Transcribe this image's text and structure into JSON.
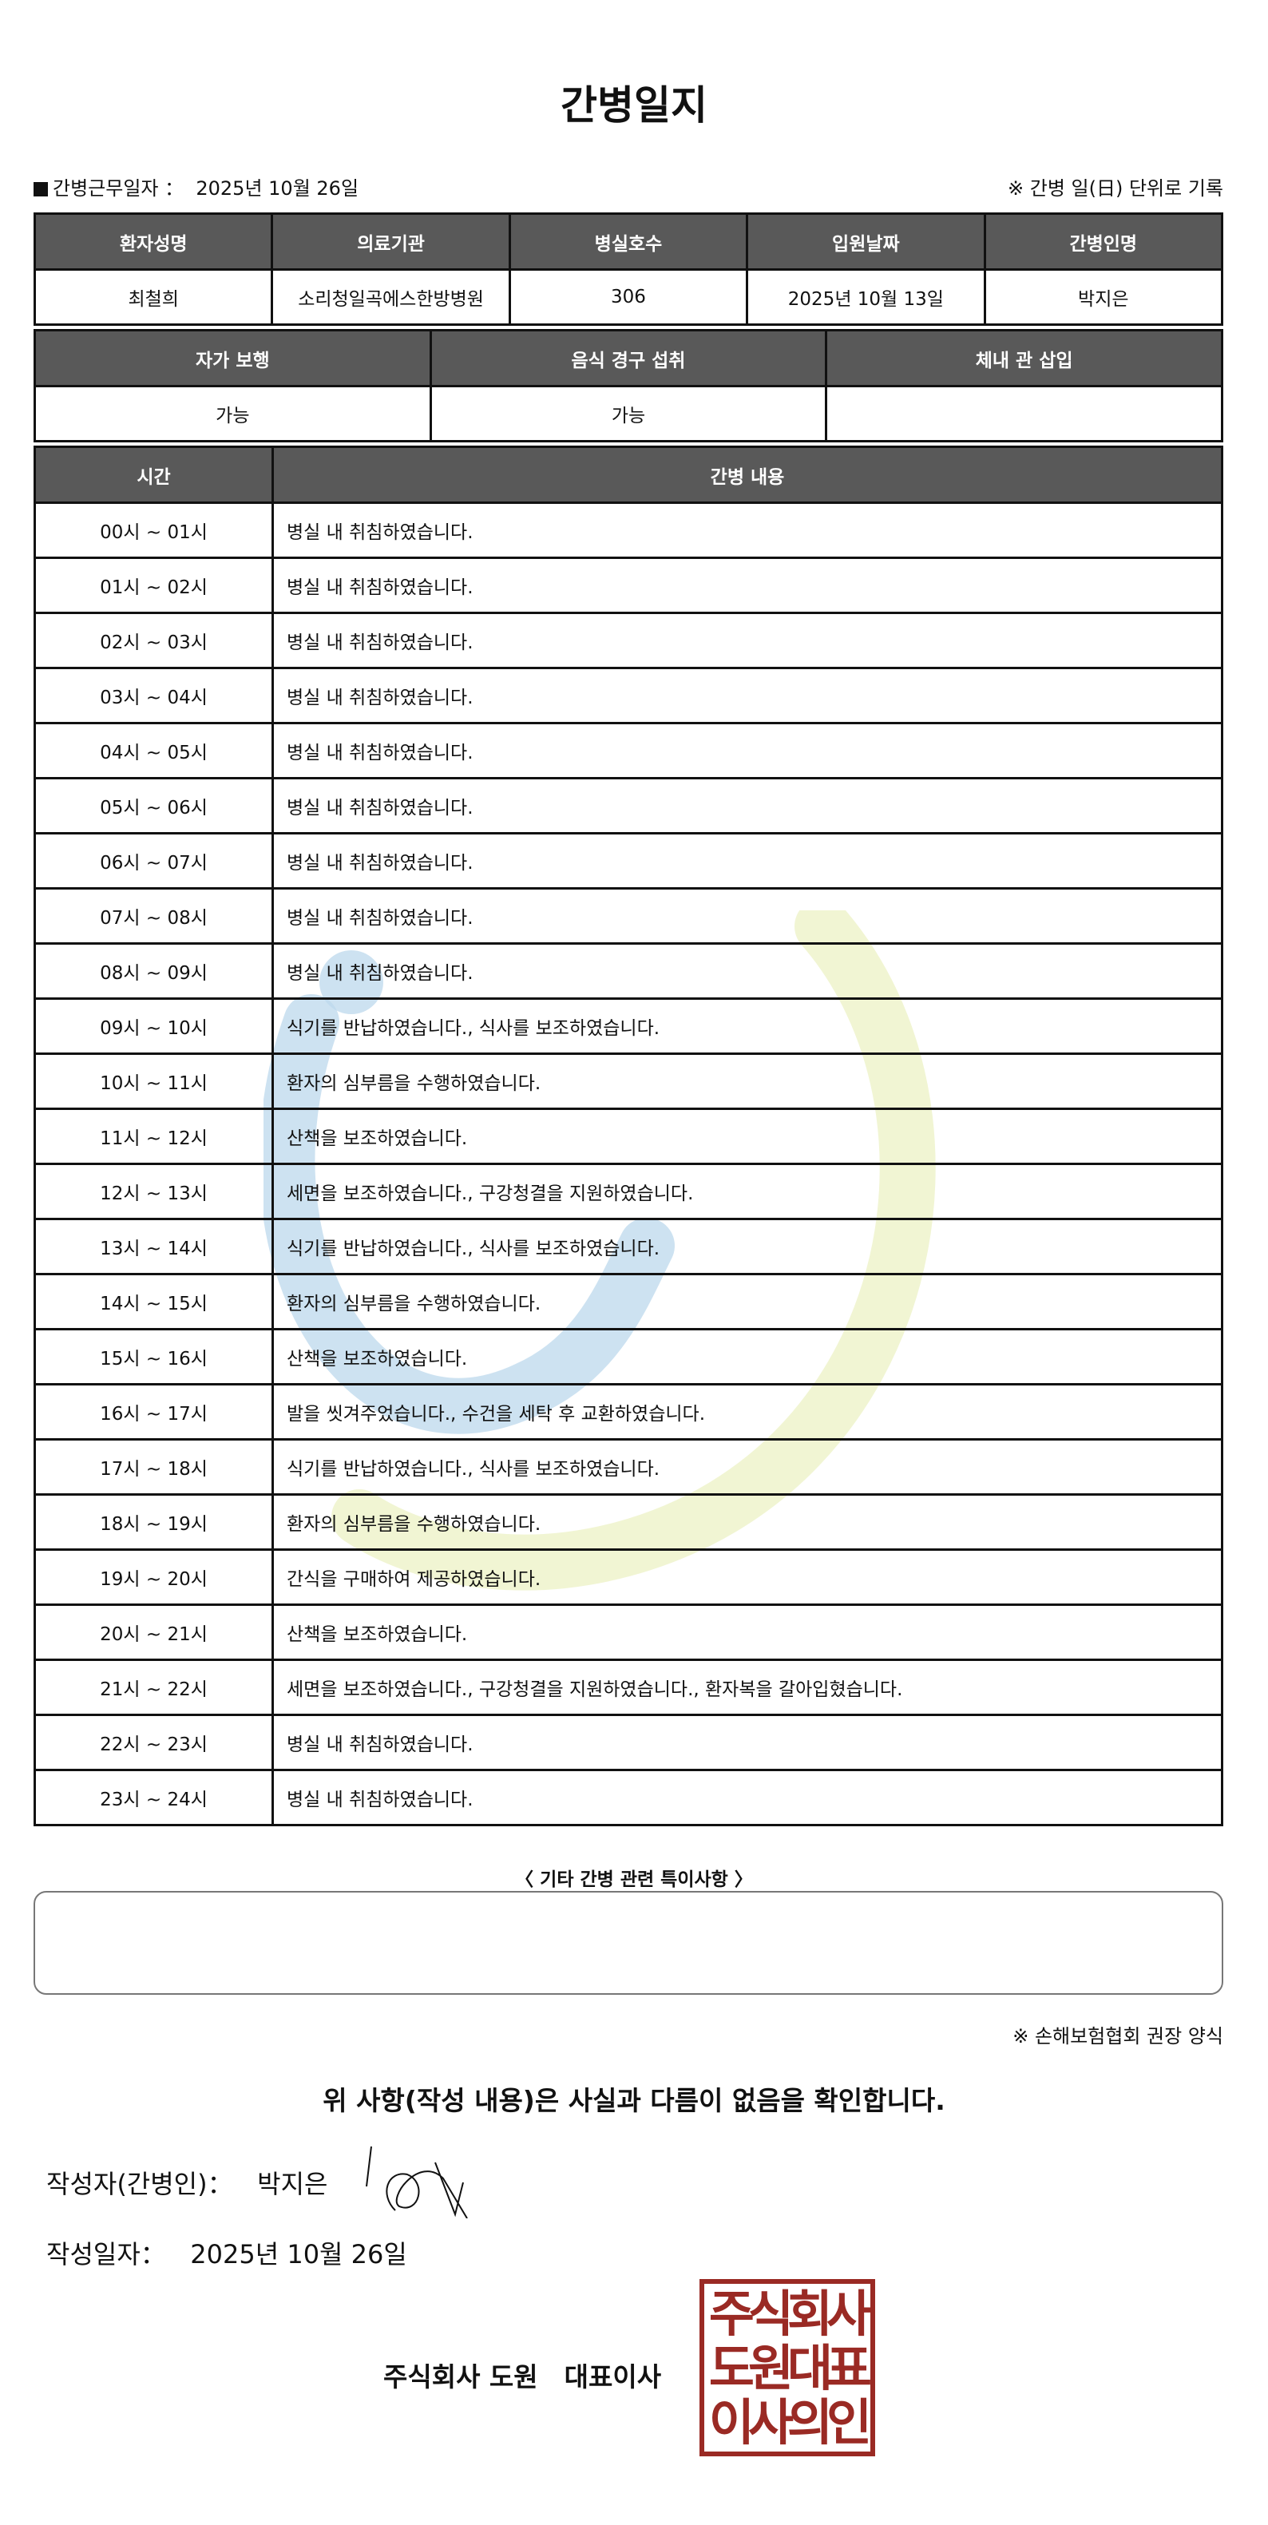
{
  "title": "간병일지",
  "work_date_label": "간병근무일자 ：",
  "work_date": "2025년 10월 26일",
  "unit_note": "※ 간병 일(日) 단위로 기록",
  "patient_table": {
    "headers": [
      "환자성명",
      "의료기관",
      "병실호수",
      "입원날짜",
      "간병인명"
    ],
    "values": [
      "최철희",
      "소리청일곡에스한방병원",
      "306",
      "2025년 10월 13일",
      "박지은"
    ]
  },
  "status_table": {
    "headers": [
      "자가 보행",
      "음식 경구 섭취",
      "체내 관 삽입"
    ],
    "values": [
      "가능",
      "가능",
      ""
    ]
  },
  "log_table": {
    "headers": [
      "시간",
      "간병 내용"
    ],
    "rows": [
      [
        "00시 ~ 01시",
        "병실 내 취침하였습니다."
      ],
      [
        "01시 ~ 02시",
        "병실 내 취침하였습니다."
      ],
      [
        "02시 ~ 03시",
        "병실 내 취침하였습니다."
      ],
      [
        "03시 ~ 04시",
        "병실 내 취침하였습니다."
      ],
      [
        "04시 ~ 05시",
        "병실 내 취침하였습니다."
      ],
      [
        "05시 ~ 06시",
        "병실 내 취침하였습니다."
      ],
      [
        "06시 ~ 07시",
        "병실 내 취침하였습니다."
      ],
      [
        "07시 ~ 08시",
        "병실 내 취침하였습니다."
      ],
      [
        "08시 ~ 09시",
        "병실 내 취침하였습니다."
      ],
      [
        "09시 ~ 10시",
        "식기를 반납하였습니다., 식사를 보조하였습니다."
      ],
      [
        "10시 ~ 11시",
        "환자의 심부름을 수행하였습니다."
      ],
      [
        "11시 ~ 12시",
        "산책을 보조하였습니다."
      ],
      [
        "12시 ~ 13시",
        "세면을 보조하였습니다., 구강청결을 지원하였습니다."
      ],
      [
        "13시 ~ 14시",
        "식기를 반납하였습니다., 식사를 보조하였습니다."
      ],
      [
        "14시 ~ 15시",
        "환자의 심부름을 수행하였습니다."
      ],
      [
        "15시 ~ 16시",
        "산책을 보조하였습니다."
      ],
      [
        "16시 ~ 17시",
        "발을 씻겨주었습니다., 수건을 세탁 후 교환하였습니다."
      ],
      [
        "17시 ~ 18시",
        "식기를 반납하였습니다., 식사를 보조하였습니다."
      ],
      [
        "18시 ~ 19시",
        "환자의 심부름을 수행하였습니다."
      ],
      [
        "19시 ~ 20시",
        "간식을 구매하여 제공하였습니다."
      ],
      [
        "20시 ~ 21시",
        "산책을 보조하였습니다."
      ],
      [
        "21시 ~ 22시",
        "세면을 보조하였습니다., 구강청결을 지원하였습니다., 환자복을 갈아입혔습니다."
      ],
      [
        "22시 ~ 23시",
        "병실 내 취침하였습니다."
      ],
      [
        "23시 ~ 24시",
        "병실 내 취침하였습니다."
      ]
    ]
  },
  "notes_label": "〈 기타 간병 관련 특이사항 〉",
  "notes": "",
  "recommend_note": "※ 손해보험협회 권장 양식",
  "confirm_text": "위 사항(작성 내용)은 사실과 다름이 없음을 확인합니다.",
  "writer_label": "작성자(간병인)：",
  "writer_name": "박지은",
  "write_date_label": "작성일자：",
  "write_date": "2025년 10월 26일",
  "company": "주식회사 도원　대표이사",
  "seal_text": "주식회사 도원대표 이사의인",
  "colors": {
    "header_bg": "#595959",
    "seal": "#9a2a24",
    "watermark_blue": "#bcd8ec",
    "watermark_green": "#eef2c8"
  }
}
